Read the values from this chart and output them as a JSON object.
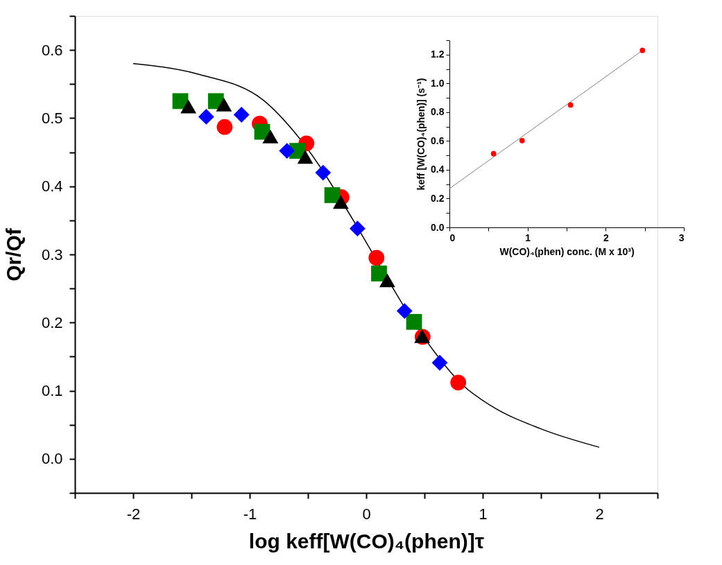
{
  "chart_data": [
    {
      "type": "scatter",
      "xlabel": "log keff[W(CO)₄(phen)]τ",
      "ylabel": "Qr/Qf",
      "xlim": [
        -2.5,
        2.5
      ],
      "ylim": [
        -0.05,
        0.65
      ],
      "xticks": [
        {
          "value": -2.5,
          "label": null
        },
        -2,
        {
          "value": -1.5,
          "label": null
        },
        -1,
        {
          "value": -0.5,
          "label": null
        },
        0,
        {
          "value": 0.5,
          "label": null
        },
        1,
        {
          "value": 1.5,
          "label": null
        },
        2,
        {
          "value": 2.5,
          "label": null
        }
      ],
      "yticks": [
        {
          "value": -0.05,
          "label": null
        },
        {
          "value": 0,
          "label": "0.0"
        },
        {
          "value": 0.05,
          "label": null
        },
        0.1,
        {
          "value": 0.15,
          "label": null
        },
        0.2,
        {
          "value": 0.25,
          "label": null
        },
        0.3,
        {
          "value": 0.35,
          "label": null
        },
        0.4,
        {
          "value": 0.45,
          "label": null
        },
        0.5,
        {
          "value": 0.55,
          "label": null
        },
        0.6,
        {
          "value": 0.65,
          "label": null
        }
      ],
      "grid": false,
      "series": [
        {
          "type": "line",
          "color": "#000000",
          "marker": "none",
          "line_style": "solid",
          "x": [
            -2,
            -1.43,
            -0.88,
            -0.58,
            -0.1,
            0.047,
            0.5,
            0.83,
            1.07,
            1.5,
            2
          ],
          "values": [
            0.58,
            0.564,
            0.526,
            0.472,
            0.347,
            0.304,
            0.177,
            0.108,
            0.078,
            0.044,
            0.017
          ]
        },
        {
          "type": "scatter",
          "color": "#ff0000",
          "marker": "circle",
          "x": [
            -1.215,
            -0.914,
            -0.513,
            -0.212,
            0.088,
            0.484,
            0.79
          ],
          "values": [
            0.487,
            0.492,
            0.463,
            0.384,
            0.295,
            0.179,
            0.112
          ]
        },
        {
          "type": "scatter",
          "color": "#008000",
          "marker": "square",
          "x": [
            -1.595,
            -1.29,
            -0.893,
            -0.592,
            -0.291,
            0.11,
            0.411
          ],
          "values": [
            0.525,
            0.525,
            0.48,
            0.452,
            0.387,
            0.272,
            0.201
          ]
        },
        {
          "type": "scatter",
          "color": "#000000",
          "marker": "triangle",
          "x": [
            -1.526,
            -1.221,
            -0.822,
            -0.523,
            -0.218,
            0.181,
            0.48
          ],
          "values": [
            0.517,
            0.52,
            0.473,
            0.443,
            0.377,
            0.262,
            0.18
          ]
        },
        {
          "type": "scatter",
          "color": "#0000ff",
          "marker": "diamond",
          "x": [
            -1.373,
            -1.07,
            -0.68,
            -0.37,
            -0.075,
            0.329,
            0.631
          ],
          "values": [
            0.502,
            0.505,
            0.452,
            0.42,
            0.338,
            0.217,
            0.141
          ]
        }
      ]
    },
    {
      "type": "scatter",
      "xlabel": "W(CO)₄(phen) conc. (M x 10³)",
      "ylabel": "keff [W(CO)₄(phen)]  (s⁻¹)",
      "xlim": [
        0,
        3
      ],
      "ylim": [
        0,
        1.3
      ],
      "xticks": [
        0,
        {
          "value": 0.5,
          "label": null
        },
        1,
        {
          "value": 1.5,
          "label": null
        },
        2,
        {
          "value": 2.5,
          "label": null
        },
        3
      ],
      "yticks": [
        {
          "value": 0,
          "label": "0.0"
        },
        {
          "value": 0.1,
          "label": null
        },
        0.2,
        {
          "value": 0.3,
          "label": null
        },
        0.4,
        {
          "value": 0.5,
          "label": null
        },
        0.6,
        {
          "value": 0.7,
          "label": null
        },
        0.8,
        {
          "value": 0.9,
          "label": null
        },
        {
          "value": 1.0,
          "label": "1.0"
        },
        {
          "value": 1.1,
          "label": null
        },
        1.2,
        {
          "value": 1.3,
          "label": null
        }
      ],
      "grid": false,
      "series": [
        {
          "type": "line",
          "color": "#808080",
          "marker": "none",
          "line_style": "solid",
          "x": [
            0,
            2.47
          ],
          "values": [
            0.269,
            1.229
          ]
        },
        {
          "type": "scatter",
          "color": "#ff0000",
          "marker": "circle",
          "x": [
            0.565,
            0.93,
            1.55,
            2.47
          ],
          "values": [
            0.512,
            0.603,
            0.85,
            1.229
          ]
        }
      ]
    }
  ]
}
